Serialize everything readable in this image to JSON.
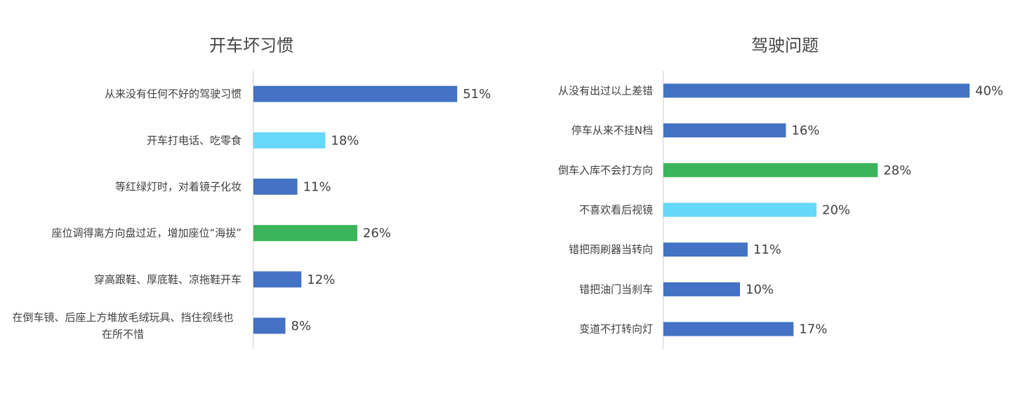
{
  "chart_data": [
    {
      "type": "bar",
      "orientation": "horizontal",
      "title": "开车坏习惯",
      "categories": [
        "从来没有任何不好的驾驶习惯",
        "开车打电话、吃零食",
        "等红绿灯时，对着镜子化妆",
        "座位调得离方向盘过近，增加座位“海拔”",
        "穿高跟鞋、厚底鞋、凉拖鞋开车",
        "在倒车镜、后座上方堆放毛绒玩具、挡住视线也在所不惜"
      ],
      "category_lines": [
        [
          "从来没有任何不好的驾驶习惯"
        ],
        [
          "开车打电话、吃零食"
        ],
        [
          "等红绿灯时，对着镜子化妆"
        ],
        [
          "座位调得离方向盘过近，增加座位“海拔”"
        ],
        [
          "穿高跟鞋、厚底鞋、凉拖鞋开车"
        ],
        [
          "在倒车镜、后座上方堆放毛绒玩具、挡住视线也",
          "在所不惜"
        ]
      ],
      "values": [
        51,
        18,
        11,
        26,
        12,
        8
      ],
      "value_labels": [
        "51%",
        "18%",
        "11%",
        "26%",
        "12%",
        "8%"
      ],
      "bar_colors": [
        "#4472c4",
        "#66d8fa",
        "#4472c4",
        "#3cb55a",
        "#4472c4",
        "#4472c4"
      ],
      "xlim": [
        0,
        60
      ],
      "grid": false,
      "legend": "none"
    },
    {
      "type": "bar",
      "orientation": "horizontal",
      "title": "驾驶问题",
      "categories": [
        "从没有出过以上差错",
        "停车从来不挂N档",
        "倒车入库不会打方向",
        "不喜欢看后视镜",
        "错把雨刷器当转向",
        "错把油门当刹车",
        "变道不打转向灯"
      ],
      "category_lines": [
        [
          "从没有出过以上差错"
        ],
        [
          "停车从来不挂N档"
        ],
        [
          "倒车入库不会打方向"
        ],
        [
          "不喜欢看后视镜"
        ],
        [
          "错把雨刷器当转向"
        ],
        [
          "错把油门当刹车"
        ],
        [
          "变道不打转向灯"
        ]
      ],
      "values": [
        40,
        16,
        28,
        20,
        11,
        10,
        17
      ],
      "value_labels": [
        "40%",
        "16%",
        "28%",
        "20%",
        "11%",
        "10%",
        "17%"
      ],
      "bar_colors": [
        "#4472c4",
        "#4472c4",
        "#3cb55a",
        "#66d8fa",
        "#4472c4",
        "#4472c4",
        "#4472c4"
      ],
      "xlim": [
        0,
        40
      ],
      "grid": false,
      "legend": "none"
    }
  ]
}
